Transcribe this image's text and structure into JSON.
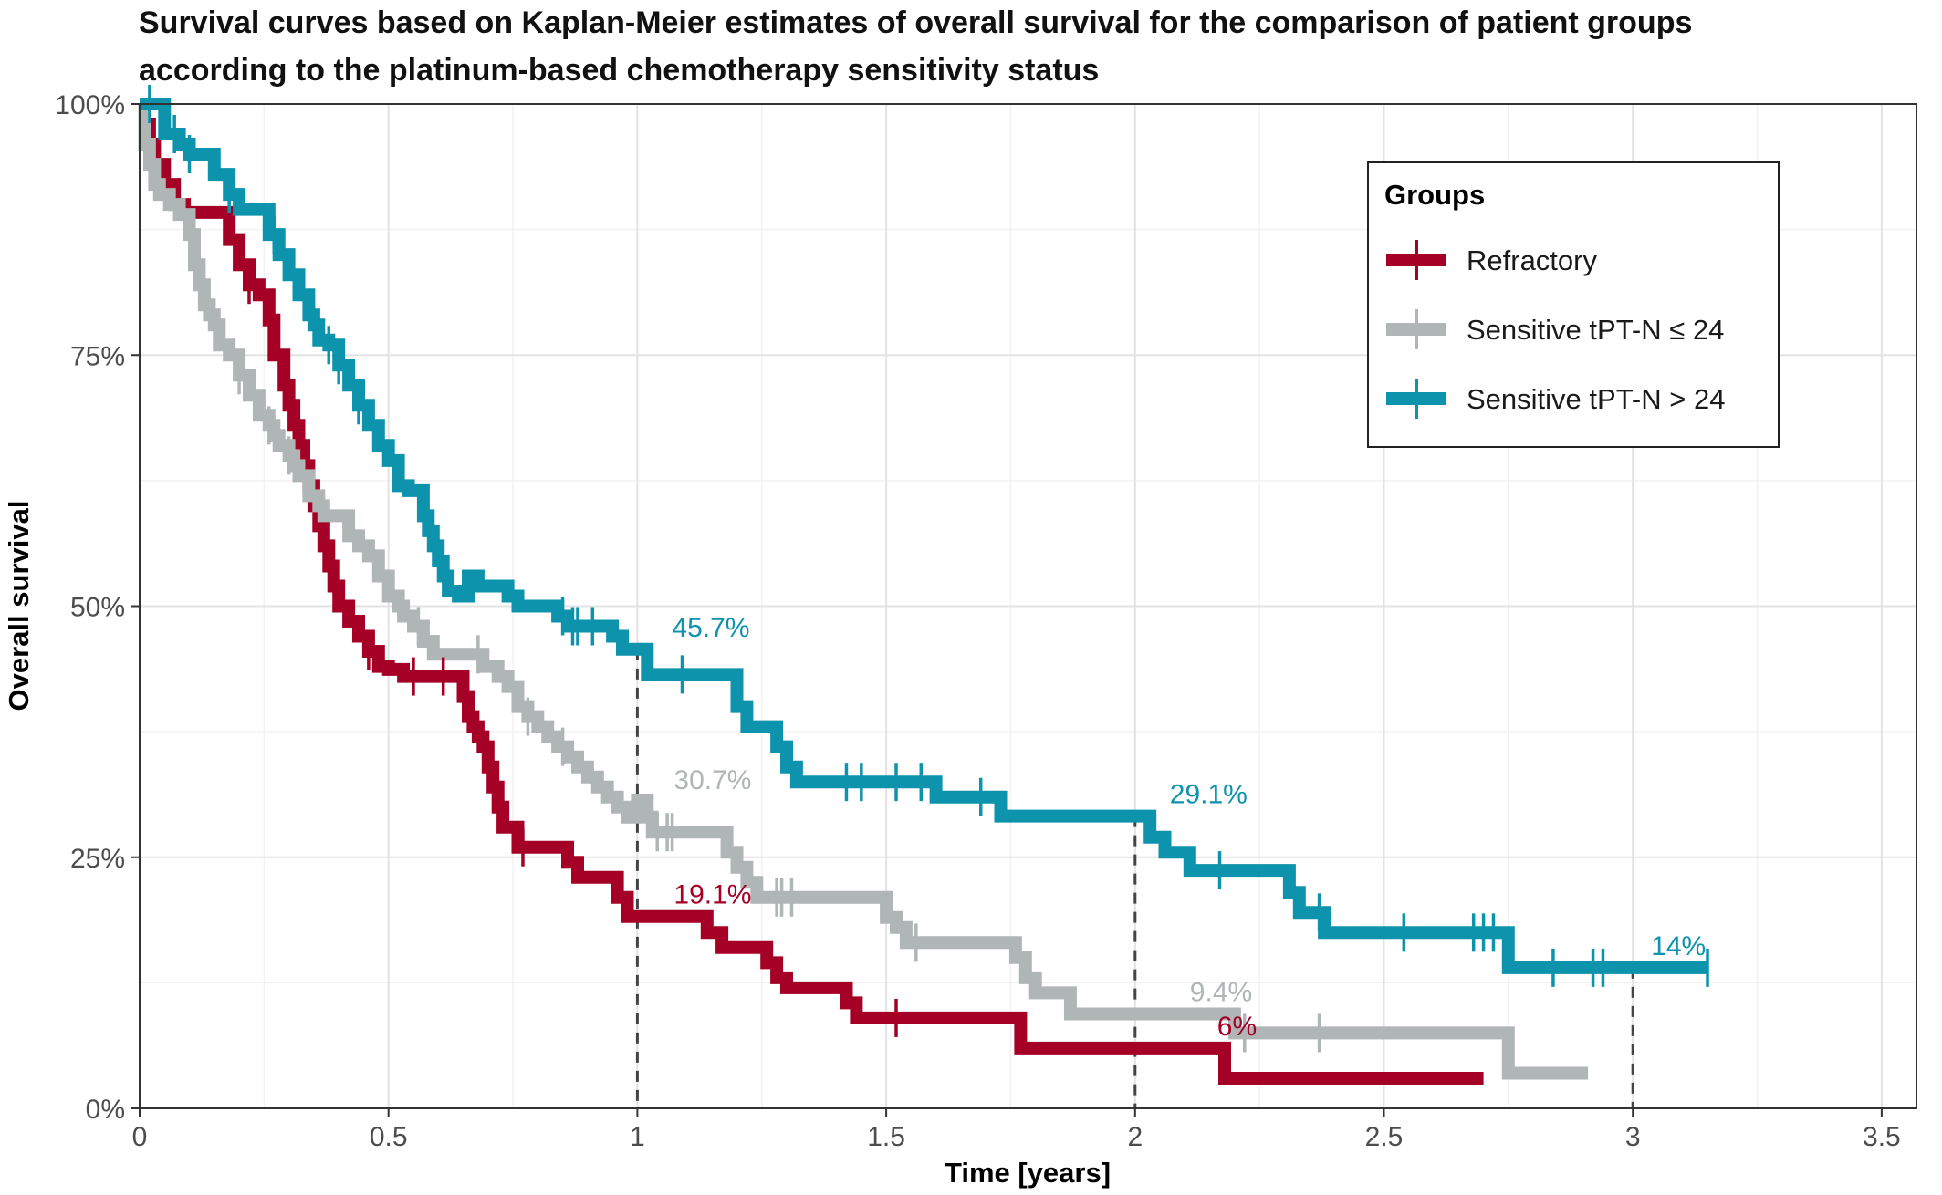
{
  "chart_data": {
    "type": "line",
    "subtype": "kaplan-meier step",
    "title_lines": [
      "Survival curves based on Kaplan-Meier estimates of overall survival for the comparison of patient groups",
      "according to the platinum-based chemotherapy sensitivity status"
    ],
    "xlabel": "Time [years]",
    "ylabel": "Overall survival",
    "xlim": [
      0,
      3.6
    ],
    "ylim": [
      0,
      1
    ],
    "x_ticks": [
      0,
      0.5,
      1,
      1.5,
      2,
      2.5,
      3,
      3.5
    ],
    "x_tick_labels": [
      "0",
      "0.5",
      "1",
      "1.5",
      "2",
      "2.5",
      "3",
      "3.5"
    ],
    "y_ticks": [
      0,
      0.25,
      0.5,
      0.75,
      1
    ],
    "y_tick_labels": [
      "0%",
      "25%",
      "50%",
      "75%",
      "100%"
    ],
    "grid": true,
    "legend": {
      "title": "Groups",
      "position": "top-right"
    },
    "reference_lines": [
      {
        "x": 1,
        "y": 0.457,
        "style": "dashed"
      },
      {
        "x": 2,
        "y": 0.291,
        "style": "dashed"
      },
      {
        "x": 3,
        "y": 0.14,
        "style": "dashed"
      }
    ],
    "series": [
      {
        "name": "Refractory",
        "color": "#a50026",
        "x": [
          0,
          0.01,
          0.02,
          0.03,
          0.05,
          0.07,
          0.09,
          0.18,
          0.2,
          0.22,
          0.24,
          0.26,
          0.27,
          0.29,
          0.3,
          0.31,
          0.32,
          0.33,
          0.34,
          0.35,
          0.36,
          0.37,
          0.38,
          0.39,
          0.4,
          0.42,
          0.44,
          0.46,
          0.48,
          0.5,
          0.53,
          0.65,
          0.66,
          0.67,
          0.68,
          0.69,
          0.7,
          0.71,
          0.72,
          0.73,
          0.76,
          0.86,
          0.88,
          0.96,
          0.98,
          1.14,
          1.17,
          1.26,
          1.28,
          1.3,
          1.42,
          1.44,
          1.77,
          2.18,
          2.7
        ],
        "y": [
          1,
          0.98,
          0.96,
          0.94,
          0.92,
          0.9,
          0.892,
          0.865,
          0.84,
          0.82,
          0.81,
          0.785,
          0.75,
          0.72,
          0.7,
          0.68,
          0.66,
          0.64,
          0.62,
          0.6,
          0.58,
          0.56,
          0.54,
          0.52,
          0.5,
          0.485,
          0.47,
          0.455,
          0.44,
          0.437,
          0.43,
          0.41,
          0.39,
          0.38,
          0.37,
          0.36,
          0.34,
          0.32,
          0.3,
          0.28,
          0.26,
          0.245,
          0.23,
          0.21,
          0.191,
          0.175,
          0.16,
          0.145,
          0.13,
          0.12,
          0.105,
          0.09,
          0.06,
          0.03,
          0.03
        ],
        "censor_x": [
          0.22,
          0.46,
          0.55,
          0.61,
          0.77,
          1.52
        ],
        "annotations": [
          {
            "x": 1,
            "label": "19.1%"
          },
          {
            "x": 2,
            "label": "6%"
          }
        ]
      },
      {
        "name": "Sensitive tPT-N ≤ 24",
        "color": "#b0b5b5",
        "x": [
          0,
          0.01,
          0.02,
          0.03,
          0.04,
          0.06,
          0.08,
          0.1,
          0.11,
          0.12,
          0.13,
          0.14,
          0.15,
          0.16,
          0.18,
          0.2,
          0.22,
          0.24,
          0.26,
          0.27,
          0.28,
          0.3,
          0.31,
          0.32,
          0.34,
          0.36,
          0.37,
          0.42,
          0.44,
          0.46,
          0.48,
          0.5,
          0.52,
          0.53,
          0.55,
          0.57,
          0.59,
          0.69,
          0.72,
          0.74,
          0.76,
          0.78,
          0.8,
          0.82,
          0.84,
          0.86,
          0.88,
          0.9,
          0.92,
          0.94,
          0.96,
          0.98,
          1.0,
          1.02,
          1.03,
          1.18,
          1.2,
          1.22,
          1.24,
          1.5,
          1.52,
          1.54,
          1.76,
          1.78,
          1.8,
          1.87,
          2.2,
          2.75,
          2.91
        ],
        "y": [
          1,
          0.96,
          0.94,
          0.92,
          0.91,
          0.9,
          0.89,
          0.87,
          0.84,
          0.82,
          0.8,
          0.79,
          0.78,
          0.76,
          0.75,
          0.73,
          0.71,
          0.69,
          0.68,
          0.67,
          0.66,
          0.65,
          0.64,
          0.63,
          0.61,
          0.6,
          0.59,
          0.57,
          0.56,
          0.55,
          0.53,
          0.51,
          0.5,
          0.49,
          0.48,
          0.465,
          0.452,
          0.44,
          0.43,
          0.42,
          0.4,
          0.39,
          0.38,
          0.37,
          0.36,
          0.35,
          0.34,
          0.33,
          0.32,
          0.31,
          0.3,
          0.29,
          0.307,
          0.29,
          0.275,
          0.255,
          0.24,
          0.225,
          0.21,
          0.19,
          0.18,
          0.165,
          0.15,
          0.13,
          0.115,
          0.094,
          0.075,
          0.035,
          0.035
        ],
        "censor_x": [
          0.2,
          0.26,
          0.3,
          0.56,
          0.68,
          0.78,
          0.85,
          1.04,
          1.06,
          1.07,
          1.28,
          1.29,
          1.31,
          1.56,
          2.22,
          2.37
        ],
        "annotations": [
          {
            "x": 1,
            "label": "30.7%"
          },
          {
            "x": 2,
            "label": "9.4%"
          }
        ]
      },
      {
        "name": "Sensitive tPT-N > 24",
        "color": "#0e93ad",
        "x": [
          0,
          0.05,
          0.08,
          0.1,
          0.15,
          0.18,
          0.2,
          0.26,
          0.28,
          0.3,
          0.32,
          0.34,
          0.35,
          0.36,
          0.38,
          0.4,
          0.42,
          0.44,
          0.46,
          0.48,
          0.5,
          0.52,
          0.54,
          0.57,
          0.58,
          0.59,
          0.6,
          0.61,
          0.62,
          0.64,
          0.66,
          0.68,
          0.74,
          0.76,
          0.84,
          0.86,
          0.95,
          0.97,
          1.02,
          1.2,
          1.22,
          1.28,
          1.3,
          1.32,
          1.6,
          1.73,
          2.03,
          2.06,
          2.11,
          2.31,
          2.33,
          2.38,
          2.75,
          3.15
        ],
        "y": [
          1,
          0.97,
          0.96,
          0.95,
          0.93,
          0.91,
          0.895,
          0.87,
          0.85,
          0.83,
          0.81,
          0.79,
          0.78,
          0.765,
          0.76,
          0.74,
          0.72,
          0.7,
          0.68,
          0.66,
          0.645,
          0.62,
          0.615,
          0.59,
          0.575,
          0.56,
          0.545,
          0.53,
          0.515,
          0.51,
          0.53,
          0.52,
          0.51,
          0.5,
          0.49,
          0.48,
          0.47,
          0.457,
          0.432,
          0.4,
          0.38,
          0.36,
          0.34,
          0.325,
          0.31,
          0.291,
          0.27,
          0.255,
          0.237,
          0.215,
          0.195,
          0.175,
          0.14,
          0.14
        ],
        "censor_x": [
          0.02,
          0.07,
          0.1,
          0.18,
          0.27,
          0.38,
          0.4,
          0.44,
          0.85,
          0.87,
          0.88,
          0.91,
          1.09,
          1.42,
          1.45,
          1.52,
          1.57,
          1.69,
          2.17,
          2.37,
          2.54,
          2.68,
          2.7,
          2.72,
          2.84,
          2.92,
          2.94,
          3.15
        ],
        "annotations": [
          {
            "x": 1,
            "label": "45.7%"
          },
          {
            "x": 2,
            "label": "29.1%"
          },
          {
            "x": 3,
            "label": "14%"
          }
        ]
      }
    ]
  }
}
